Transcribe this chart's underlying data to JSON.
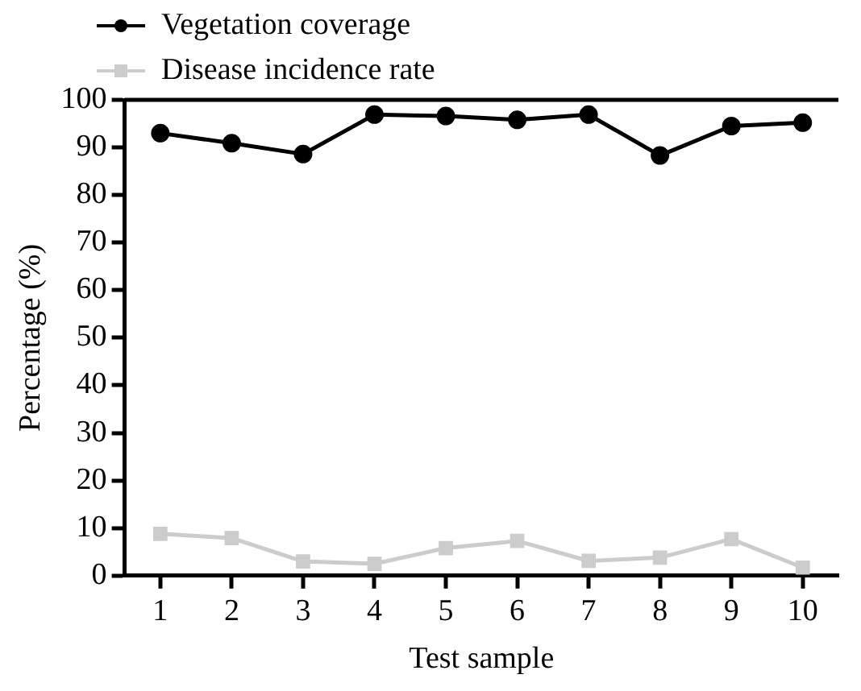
{
  "chart_data": {
    "type": "line",
    "xlabel": "Test sample",
    "ylabel": "Percentage (%)",
    "categories": [
      "1",
      "2",
      "3",
      "4",
      "5",
      "6",
      "7",
      "8",
      "9",
      "10"
    ],
    "series": [
      {
        "name": "Vegetation coverage",
        "color": "#000000",
        "marker": "circle",
        "values": [
          93.0,
          90.9,
          88.6,
          96.9,
          96.6,
          95.8,
          96.9,
          88.3,
          94.5,
          95.2
        ]
      },
      {
        "name": "Disease incidence rate",
        "color": "#cccccc",
        "marker": "square",
        "values": [
          8.8,
          7.9,
          3.0,
          2.5,
          5.8,
          7.3,
          3.1,
          3.8,
          7.7,
          1.7
        ]
      }
    ],
    "ylim": [
      0,
      100
    ],
    "yticks": [
      0,
      10,
      20,
      30,
      40,
      50,
      60,
      70,
      80,
      90,
      100
    ],
    "grid": false,
    "legend": "top left",
    "line_style": "solid"
  }
}
